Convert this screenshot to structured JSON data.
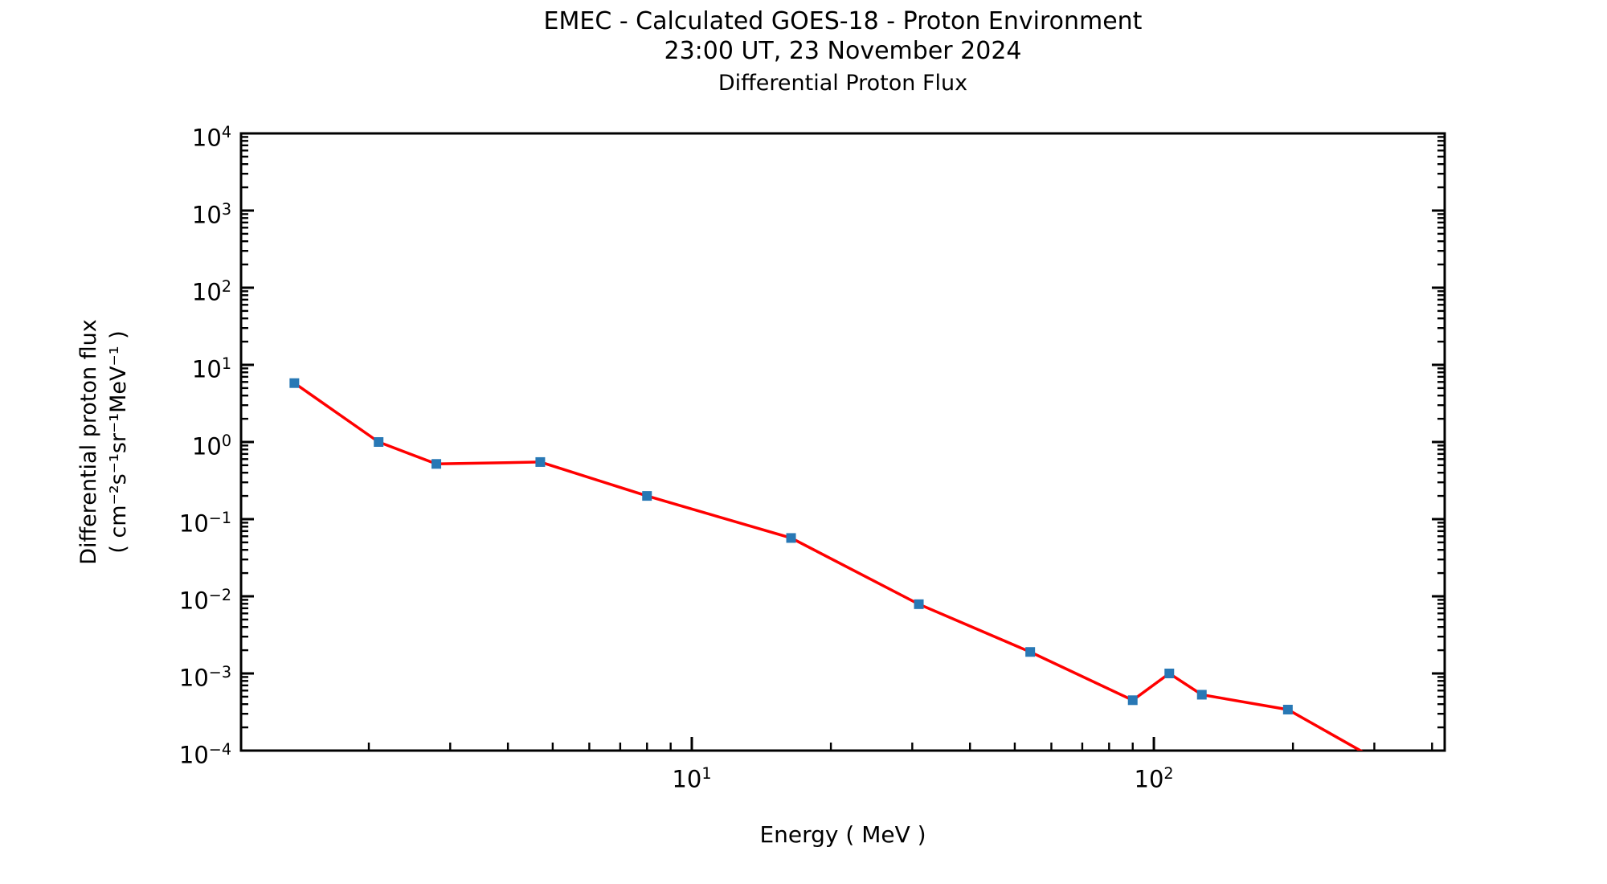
{
  "header": {
    "title_line1": "EMEC - Calculated GOES-18 - Proton Environment",
    "title_line2": "23:00 UT, 23 November 2024"
  },
  "chart_data": {
    "type": "line",
    "title": "Differential Proton Flux",
    "xlabel": "Energy ( MeV )",
    "ylabel_line1": "Differential proton flux",
    "ylabel_line2": "( cm⁻²s⁻¹sr⁻¹MeV⁻¹ )",
    "x_scale": "log",
    "y_scale": "log",
    "xlim": [
      1.058,
      426
    ],
    "ylim": [
      0.0001,
      10000
    ],
    "x_major_tick_exponents": [
      1,
      2
    ],
    "y_major_tick_exponents": [
      4,
      3,
      2,
      1,
      0,
      -1,
      -2,
      -3,
      -4
    ],
    "grid": false,
    "legend": "none",
    "line_color": "#ff0000",
    "marker_color": "#2878b5",
    "marker_shape": "square",
    "axis_color": "#000000",
    "series": [
      {
        "name": "differential proton flux",
        "x": [
          1.38,
          2.1,
          2.8,
          4.7,
          8.0,
          16.4,
          31,
          54,
          90,
          108,
          127,
          195,
          334
        ],
        "y": [
          5.8,
          1.0,
          0.52,
          0.55,
          0.2,
          0.057,
          0.0079,
          0.0019,
          0.00045,
          0.001,
          0.00053,
          0.00034,
          5.5e-05
        ],
        "note_last_point_clipped_below_axis": true
      }
    ]
  }
}
